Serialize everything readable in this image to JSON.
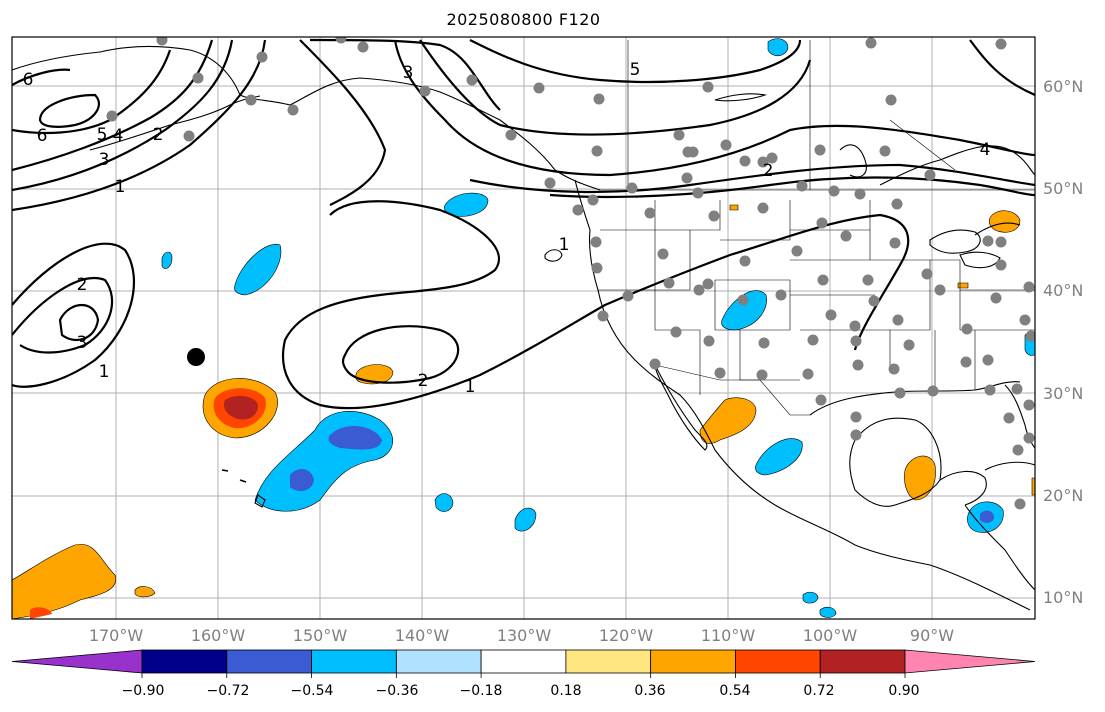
{
  "title": "2025080800 F120",
  "lat_labels": [
    "60°N",
    "50°N",
    "40°N",
    "30°N",
    "20°N",
    "10°N"
  ],
  "lon_labels": [
    "170°W",
    "160°W",
    "150°W",
    "140°W",
    "130°W",
    "120°W",
    "110°W",
    "100°W",
    "90°W"
  ],
  "contour_labels": [
    "6",
    "6",
    "5",
    "4",
    "3",
    "2",
    "1",
    "2",
    "3",
    "1",
    "5",
    "2",
    "4",
    "2",
    "1",
    "3",
    "1"
  ],
  "colorbar": {
    "ticks": [
      "−0.90",
      "−0.72",
      "−0.54",
      "−0.36",
      "−0.18",
      "0.18",
      "0.36",
      "0.54",
      "0.72",
      "0.90"
    ],
    "colors": [
      "#9932cc",
      "#00008b",
      "#3a5bd1",
      "#00bfff",
      "#b0e2ff",
      "#ffffff",
      "#ffe680",
      "#ffa500",
      "#ff4500",
      "#b22222",
      "#ff85b0"
    ]
  }
}
